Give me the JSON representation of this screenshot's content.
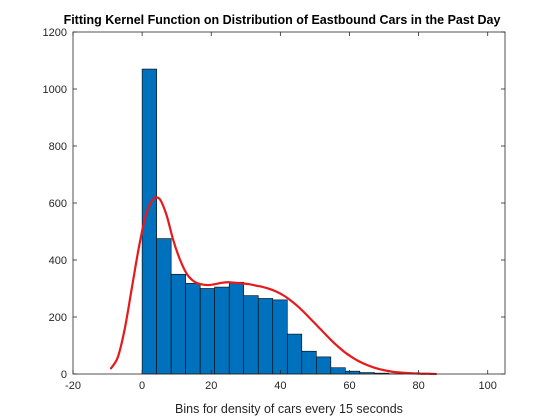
{
  "chart_data": {
    "type": "bar",
    "title": "Fitting Kernel Function on Distribution of Eastbound Cars in the Past Day",
    "xlabel": "Bins for density of cars every 15 seconds",
    "ylabel": "",
    "xlim": [
      -20,
      105
    ],
    "ylim": [
      0,
      1200
    ],
    "xticks": [
      "-20",
      "0",
      "20",
      "40",
      "60",
      "80",
      "100"
    ],
    "yticks": [
      "0",
      "200",
      "400",
      "600",
      "800",
      "1000",
      "1200"
    ],
    "grid": false,
    "legend": "none",
    "colors": {
      "bars": "#0072BD",
      "bar_edge": "#000000",
      "kernel": "#E6191B",
      "axis": "#262626"
    },
    "bin_edges": [
      0,
      4.2,
      8.4,
      12.6,
      16.8,
      21.0,
      25.2,
      29.4,
      33.6,
      37.8,
      42.0,
      46.2,
      50.4,
      54.6,
      58.8,
      63.0,
      67.2,
      71.4,
      75.6
    ],
    "bin_counts": [
      1070,
      475,
      350,
      318,
      300,
      305,
      322,
      275,
      265,
      260,
      140,
      80,
      60,
      22,
      10,
      5,
      3,
      1
    ],
    "kernel_fit": {
      "x": [
        -9,
        -7,
        -5,
        -3,
        -1,
        1,
        3,
        5,
        7,
        9,
        11,
        13,
        15,
        17,
        19,
        21,
        23,
        25,
        27,
        29,
        31,
        33,
        35,
        37,
        39,
        41,
        43,
        45,
        47,
        49,
        51,
        53,
        55,
        57,
        59,
        61,
        63,
        65,
        67,
        69,
        71,
        73,
        75,
        77,
        79,
        81,
        83,
        85
      ],
      "y": [
        20,
        60,
        160,
        300,
        440,
        555,
        610,
        615,
        560,
        470,
        400,
        350,
        325,
        315,
        312,
        315,
        320,
        322,
        320,
        318,
        315,
        310,
        305,
        298,
        288,
        275,
        258,
        238,
        215,
        190,
        165,
        140,
        115,
        93,
        73,
        57,
        43,
        32,
        23,
        16,
        11,
        7,
        5,
        3,
        2,
        1,
        1,
        0
      ]
    }
  }
}
